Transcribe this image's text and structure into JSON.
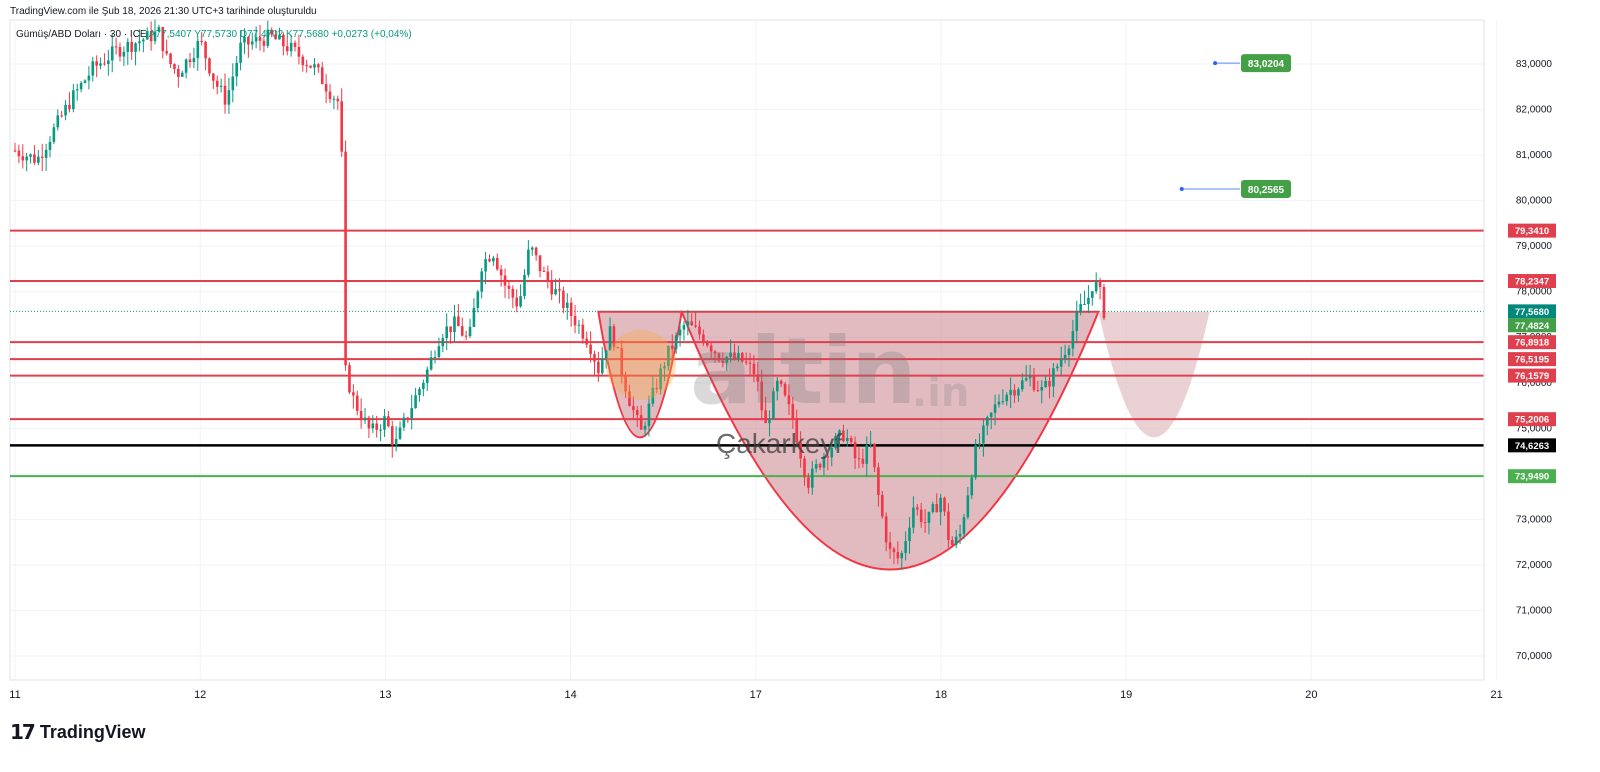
{
  "header": {
    "caption": "TradingView.com ile Şub 18, 2026 21:30 UTC+3 tarihinde oluşturuldu",
    "symbol": "Gümüş/ABD Doları · 30 · ICE",
    "ohlc_text": "A77,5407 Y77,5730 D77,4702 K77,5680",
    "change_text": "+0,0273 (+0,04%)"
  },
  "watermark": {
    "brand": "altin",
    "brand_tld": ".in",
    "author": "Çakarkeyf"
  },
  "footer": {
    "logo_text": "TradingView",
    "logo_mark": "17"
  },
  "colors": {
    "up": "#089981",
    "down": "#f23645",
    "resistance": "#e0404e",
    "support": "#4caf50",
    "pivot": "#000000",
    "target": "#43a047",
    "pattern_fill": "#c9848c",
    "projection_fill": "#dcb4b8",
    "current": "#089981"
  },
  "chart_data": {
    "type": "candlestick",
    "ylim": [
      69.3,
      83.9
    ],
    "y_ticks": [
      70,
      71,
      72,
      73,
      74,
      75,
      76,
      77,
      78,
      79,
      80,
      81,
      82,
      83
    ],
    "y_tick_labels": [
      "70,0000",
      "71,0000",
      "72,0000",
      "73,0000",
      "74,0000",
      "75,0000",
      "76,0000",
      "77,0000",
      "78,0000",
      "79,0000",
      "80,0000",
      "81,0000",
      "82,0000",
      "83,0000"
    ],
    "x_labels": [
      "11",
      "12",
      "13",
      "14",
      "17",
      "18",
      "19",
      "20",
      "21"
    ],
    "x_label_positions": [
      0,
      1,
      2,
      3,
      4,
      5,
      6,
      7,
      8
    ],
    "last_x": 5.88,
    "price_path": [
      [
        0.0,
        81.1
      ],
      [
        0.12,
        80.9
      ],
      [
        0.3,
        82.2
      ],
      [
        0.42,
        82.9
      ],
      [
        0.55,
        83.3
      ],
      [
        0.78,
        83.7
      ],
      [
        0.82,
        83.1
      ],
      [
        0.88,
        82.8
      ],
      [
        1.0,
        83.5
      ],
      [
        1.08,
        82.6
      ],
      [
        1.14,
        82.2
      ],
      [
        1.22,
        83.4
      ],
      [
        1.38,
        83.6
      ],
      [
        1.5,
        83.3
      ],
      [
        1.62,
        82.9
      ],
      [
        1.7,
        82.4
      ],
      [
        1.76,
        82.1
      ],
      [
        1.78,
        76.3
      ],
      [
        1.83,
        75.6
      ],
      [
        1.92,
        74.9
      ],
      [
        2.0,
        75.2
      ],
      [
        2.05,
        74.6
      ],
      [
        2.12,
        75.3
      ],
      [
        2.22,
        76.2
      ],
      [
        2.3,
        77.1
      ],
      [
        2.38,
        77.3
      ],
      [
        2.45,
        76.9
      ],
      [
        2.52,
        78.6
      ],
      [
        2.58,
        78.9
      ],
      [
        2.65,
        78.1
      ],
      [
        2.72,
        77.7
      ],
      [
        2.78,
        79.0
      ],
      [
        2.85,
        78.4
      ],
      [
        2.95,
        77.8
      ],
      [
        3.02,
        77.4
      ],
      [
        3.1,
        76.9
      ],
      [
        3.15,
        76.3
      ],
      [
        3.22,
        77.2
      ],
      [
        3.26,
        76.5
      ],
      [
        3.32,
        75.6
      ],
      [
        3.38,
        74.9
      ],
      [
        3.45,
        75.8
      ],
      [
        3.52,
        76.6
      ],
      [
        3.62,
        77.3
      ],
      [
        3.72,
        77.0
      ],
      [
        3.8,
        76.6
      ],
      [
        3.92,
        76.5
      ],
      [
        4.0,
        76.2
      ],
      [
        4.05,
        75.0
      ],
      [
        4.12,
        76.0
      ],
      [
        4.2,
        75.2
      ],
      [
        4.28,
        73.8
      ],
      [
        4.38,
        74.5
      ],
      [
        4.48,
        74.9
      ],
      [
        4.55,
        74.2
      ],
      [
        4.62,
        74.6
      ],
      [
        4.67,
        73.3
      ],
      [
        4.72,
        72.3
      ],
      [
        4.78,
        72.1
      ],
      [
        4.85,
        73.3
      ],
      [
        4.92,
        72.9
      ],
      [
        5.0,
        73.5
      ],
      [
        5.05,
        72.4
      ],
      [
        5.1,
        72.6
      ],
      [
        5.18,
        74.4
      ],
      [
        5.25,
        75.1
      ],
      [
        5.32,
        75.7
      ],
      [
        5.4,
        75.9
      ],
      [
        5.48,
        76.1
      ],
      [
        5.55,
        75.8
      ],
      [
        5.62,
        76.3
      ],
      [
        5.7,
        77.0
      ],
      [
        5.75,
        77.6
      ],
      [
        5.79,
        77.8
      ],
      [
        5.82,
        78.2
      ],
      [
        5.85,
        78.1
      ],
      [
        5.88,
        77.57
      ]
    ],
    "horizontal_levels": [
      {
        "value": 79.341,
        "label": "79,3410",
        "kind": "resistance"
      },
      {
        "value": 78.2347,
        "label": "78,2347",
        "kind": "resistance"
      },
      {
        "value": 76.8918,
        "label": "76,8918",
        "kind": "resistance"
      },
      {
        "value": 76.5195,
        "label": "76,5195",
        "kind": "resistance"
      },
      {
        "value": 76.1579,
        "label": "76,1579",
        "kind": "resistance"
      },
      {
        "value": 75.2006,
        "label": "75,2006",
        "kind": "resistance"
      },
      {
        "value": 74.6263,
        "label": "74,6263",
        "kind": "pivot"
      },
      {
        "value": 73.949,
        "label": "73,9490",
        "kind": "support"
      }
    ],
    "price_tags": [
      {
        "value": 77.568,
        "label": "77,5680",
        "kind": "current"
      },
      {
        "value": 77.4824,
        "label": "77,4824",
        "kind": "current-alt"
      }
    ],
    "targets": [
      {
        "x": 6.48,
        "value": 83.0204,
        "label": "83,0204"
      },
      {
        "x": 6.3,
        "value": 80.2565,
        "label": "80,2565"
      }
    ],
    "neckline": 77.56,
    "patterns": [
      {
        "kind": "handle",
        "x_start": 3.15,
        "x_end": 3.6,
        "bottom": 74.8
      },
      {
        "kind": "cup",
        "x_start": 3.6,
        "x_end": 5.85,
        "bottom": 71.9
      },
      {
        "kind": "projection",
        "x_start": 5.85,
        "x_end": 6.45,
        "bottom": 74.8
      }
    ]
  }
}
